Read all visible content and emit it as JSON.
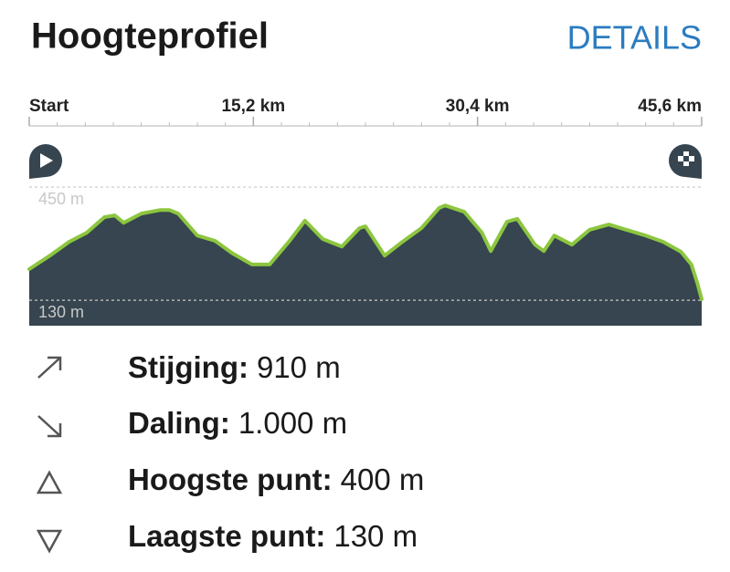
{
  "header": {
    "title": "Hoogteprofiel",
    "action": "DETAILS"
  },
  "chart_data": {
    "type": "area",
    "x": [
      0.0,
      1.4,
      2.7,
      3.9,
      5.1,
      5.8,
      6.4,
      7.6,
      8.9,
      9.5,
      10.1,
      11.4,
      12.6,
      13.8,
      15.1,
      16.3,
      17.6,
      18.7,
      19.9,
      21.2,
      22.4,
      22.8,
      24.1,
      25.3,
      26.6,
      27.8,
      28.2,
      29.5,
      30.7,
      31.3,
      32.4,
      33.1,
      34.3,
      34.9,
      35.6,
      36.8,
      38.0,
      39.3,
      40.5,
      41.8,
      43.0,
      44.2,
      44.9,
      45.3,
      45.6
    ],
    "values": [
      218,
      256,
      295,
      321,
      365,
      370,
      349,
      375,
      385,
      385,
      375,
      313,
      298,
      262,
      231,
      231,
      295,
      355,
      303,
      282,
      334,
      339,
      256,
      295,
      334,
      391,
      398,
      380,
      321,
      269,
      352,
      360,
      287,
      269,
      313,
      287,
      329,
      344,
      329,
      313,
      295,
      267,
      231,
      179,
      133
    ],
    "xlim": [
      0,
      45.6
    ],
    "xticks": [
      {
        "value": 0,
        "label": "Start"
      },
      {
        "value": 15.2,
        "label": "15,2 km"
      },
      {
        "value": 30.4,
        "label": "30,4 km"
      },
      {
        "value": 45.6,
        "label": "45,6 km"
      }
    ],
    "ylim": [
      58,
      592
    ],
    "yticks": [
      {
        "value": 130,
        "label": "130 m"
      },
      {
        "value": 450,
        "label": "450 m"
      }
    ],
    "color": "#8cc63f",
    "fill": "#36454f"
  },
  "stats": [
    {
      "label": "Stijging:",
      "value": "910 m"
    },
    {
      "label": "Daling:",
      "value": "1.000 m"
    },
    {
      "label": "Hoogste punt:",
      "value": "400 m"
    },
    {
      "label": "Laagste punt:",
      "value": "130 m"
    }
  ]
}
